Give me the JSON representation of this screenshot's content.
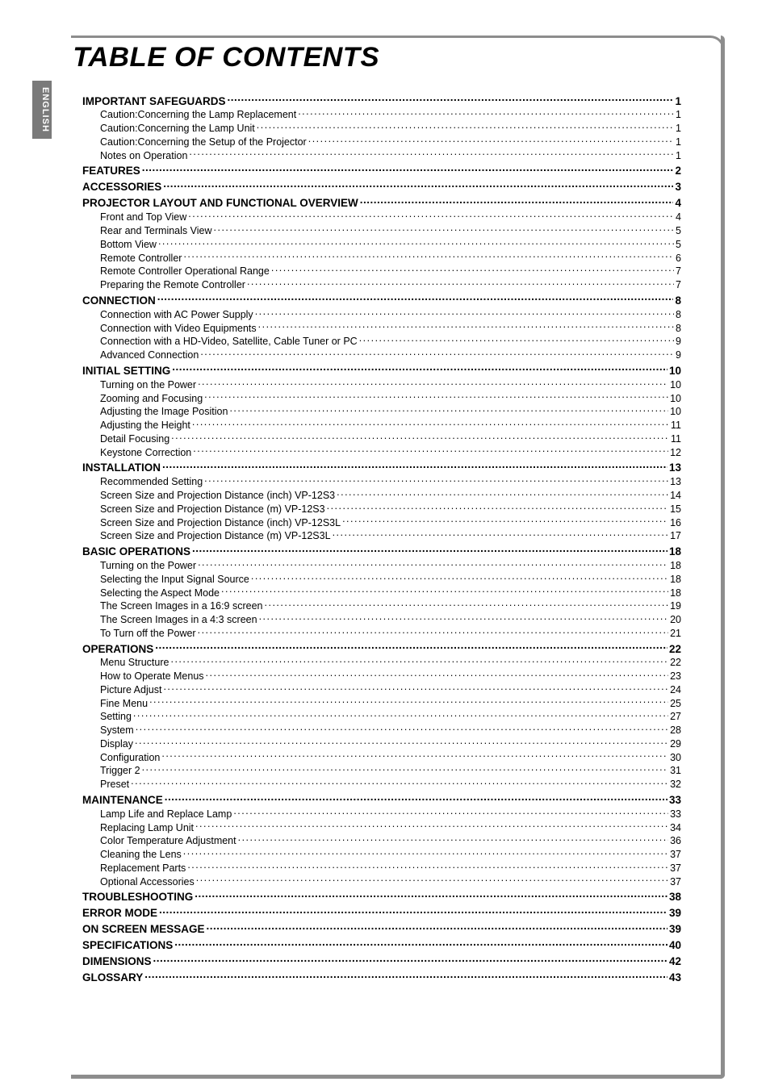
{
  "sideTab": "ENGLISH",
  "title": "TABLE OF CONTENTS",
  "style": {
    "frame_color": "#8d8d8d",
    "tab_bg": "#7a7a7a",
    "tab_fg": "#ffffff",
    "body_font_size": 12.5,
    "l0_font_size": 13.5,
    "title_font_size": 34
  },
  "entries": [
    {
      "level": 0,
      "label": "IMPORTANT SAFEGUARDS",
      "page": "1"
    },
    {
      "level": 1,
      "label": "Caution:Concerning the Lamp Replacement",
      "page": "1"
    },
    {
      "level": 1,
      "label": "Caution:Concerning the Lamp Unit",
      "page": "1"
    },
    {
      "level": 1,
      "label": "Caution:Concerning the Setup of the Projector",
      "page": "1"
    },
    {
      "level": 1,
      "label": "Notes on Operation",
      "page": "1"
    },
    {
      "level": 0,
      "label": "FEATURES",
      "page": "2"
    },
    {
      "level": 0,
      "label": "ACCESSORIES",
      "page": "3"
    },
    {
      "level": 0,
      "label": "PROJECTOR LAYOUT AND FUNCTIONAL OVERVIEW",
      "page": "4"
    },
    {
      "level": 1,
      "label": "Front and Top View",
      "page": "4"
    },
    {
      "level": 1,
      "label": "Rear and Terminals View",
      "page": "5"
    },
    {
      "level": 1,
      "label": "Bottom View",
      "page": "5"
    },
    {
      "level": 1,
      "label": "Remote Controller",
      "page": "6"
    },
    {
      "level": 1,
      "label": "Remote Controller Operational Range",
      "page": "7"
    },
    {
      "level": 1,
      "label": "Preparing the Remote Controller",
      "page": "7"
    },
    {
      "level": 0,
      "label": "CONNECTION",
      "page": "8"
    },
    {
      "level": 1,
      "label": "Connection with AC Power Supply",
      "page": "8"
    },
    {
      "level": 1,
      "label": "Connection with Video Equipments",
      "page": "8"
    },
    {
      "level": 1,
      "label": "Connection with a HD-Video, Satellite, Cable Tuner or PC",
      "page": "9"
    },
    {
      "level": 1,
      "label": "Advanced Connection",
      "page": "9"
    },
    {
      "level": 0,
      "label": "INITIAL SETTING",
      "page": "10"
    },
    {
      "level": 1,
      "label": "Turning on the Power",
      "page": "10"
    },
    {
      "level": 1,
      "label": "Zooming and Focusing",
      "page": "10"
    },
    {
      "level": 1,
      "label": "Adjusting the Image Position",
      "page": "10"
    },
    {
      "level": 1,
      "label": "Adjusting the Height",
      "page": "11"
    },
    {
      "level": 1,
      "label": "Detail Focusing",
      "page": "11"
    },
    {
      "level": 1,
      "label": "Keystone Correction",
      "page": "12"
    },
    {
      "level": 0,
      "label": "INSTALLATION",
      "page": "13"
    },
    {
      "level": 1,
      "label": "Recommended Setting",
      "page": "13"
    },
    {
      "level": 1,
      "label": "Screen Size and Projection Distance (inch)  VP-12S3",
      "page": "14"
    },
    {
      "level": 1,
      "label": "Screen Size and Projection Distance (m)  VP-12S3",
      "page": "15"
    },
    {
      "level": 1,
      "label": "Screen Size and Projection Distance (inch)  VP-12S3L",
      "page": "16"
    },
    {
      "level": 1,
      "label": "Screen Size and Projection Distance (m)  VP-12S3L",
      "page": "17"
    },
    {
      "level": 0,
      "label": "BASIC OPERATIONS",
      "page": "18"
    },
    {
      "level": 1,
      "label": "Turning on the Power",
      "page": "18"
    },
    {
      "level": 1,
      "label": "Selecting the Input Signal Source",
      "page": "18"
    },
    {
      "level": 1,
      "label": "Selecting the Aspect Mode",
      "page": "18"
    },
    {
      "level": 1,
      "label": "The Screen Images in a 16:9 screen",
      "page": "19"
    },
    {
      "level": 1,
      "label": "The Screen Images in a 4:3 screen",
      "page": "20"
    },
    {
      "level": 1,
      "label": "To Turn off the Power",
      "page": "21"
    },
    {
      "level": 0,
      "label": "OPERATIONS",
      "page": "22"
    },
    {
      "level": 1,
      "label": "Menu Structure",
      "page": "22"
    },
    {
      "level": 1,
      "label": "How to Operate Menus",
      "page": "23"
    },
    {
      "level": 1,
      "label": "Picture Adjust",
      "page": "24"
    },
    {
      "level": 1,
      "label": "Fine Menu",
      "page": "25"
    },
    {
      "level": 1,
      "label": "Setting",
      "page": "27"
    },
    {
      "level": 1,
      "label": "System",
      "page": "28"
    },
    {
      "level": 1,
      "label": "Display",
      "page": "29"
    },
    {
      "level": 1,
      "label": "Configuration",
      "page": "30"
    },
    {
      "level": 1,
      "label": "Trigger 2",
      "page": "31"
    },
    {
      "level": 1,
      "label": "Preset",
      "page": "32"
    },
    {
      "level": 0,
      "label": "MAINTENANCE",
      "page": "33"
    },
    {
      "level": 1,
      "label": "Lamp Life and Replace Lamp",
      "page": "33"
    },
    {
      "level": 1,
      "label": "Replacing Lamp Unit",
      "page": "34"
    },
    {
      "level": 1,
      "label": "Color Temperature Adjustment",
      "page": "36"
    },
    {
      "level": 1,
      "label": "Cleaning the Lens",
      "page": "37"
    },
    {
      "level": 1,
      "label": "Replacement Parts",
      "page": "37"
    },
    {
      "level": 1,
      "label": "Optional Accessories",
      "page": "37"
    },
    {
      "level": 0,
      "label": "TROUBLESHOOTING",
      "page": "38"
    },
    {
      "level": 0,
      "label": "ERROR MODE",
      "page": "39"
    },
    {
      "level": 0,
      "label": "ON SCREEN MESSAGE",
      "page": "39"
    },
    {
      "level": 0,
      "label": "SPECIFICATIONS",
      "page": "40"
    },
    {
      "level": 0,
      "label": "DIMENSIONS",
      "page": "42"
    },
    {
      "level": 0,
      "label": "GLOSSARY",
      "page": "43"
    }
  ]
}
